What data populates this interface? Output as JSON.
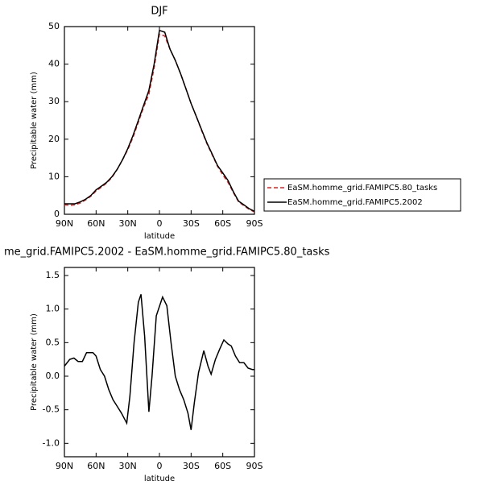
{
  "chart_data": [
    {
      "type": "line",
      "title": "DJF",
      "xlabel": "latitude",
      "ylabel": "Precipitable water (mm)",
      "x": [
        90,
        85,
        80,
        75,
        70,
        65,
        60,
        55,
        50,
        45,
        40,
        35,
        30,
        25,
        20,
        15,
        10,
        5,
        0,
        -5,
        -10,
        -15,
        -20,
        -25,
        -30,
        -35,
        -40,
        -45,
        -50,
        -55,
        -60,
        -65,
        -70,
        -75,
        -80,
        -85,
        -90
      ],
      "series": [
        {
          "name": "EaSM.homme_grid.FAMIPC5.80_tasks",
          "color": "#e02020",
          "dash": true,
          "values": [
            2.5,
            2.4,
            2.5,
            3.0,
            3.8,
            4.8,
            6.2,
            7.2,
            8.3,
            9.8,
            12,
            14.5,
            17.2,
            20.5,
            24.5,
            28.5,
            32,
            39,
            48,
            47.5,
            44,
            41,
            37.5,
            33.5,
            29.5,
            26,
            22.3,
            18.8,
            15.8,
            12.8,
            10.5,
            8.5,
            5.8,
            3.3,
            2.3,
            1.3,
            0.6
          ]
        },
        {
          "name": "EaSM.homme_grid.FAMIPC5.2002",
          "color": "#000000",
          "dash": false,
          "values": [
            2.8,
            2.8,
            2.8,
            3.3,
            4.0,
            5.0,
            6.5,
            7.5,
            8.5,
            10,
            12,
            14.5,
            17.5,
            21,
            25,
            29,
            33,
            40,
            49,
            48.5,
            44,
            41,
            37.5,
            33.5,
            29.5,
            26,
            22.5,
            19,
            16,
            13,
            11,
            9,
            6,
            3.5,
            2.5,
            1.5,
            0.8
          ]
        }
      ],
      "xlim": [
        90,
        -90
      ],
      "xticks": [
        {
          "value": 90,
          "label": "90N"
        },
        {
          "value": 60,
          "label": "60N"
        },
        {
          "value": 30,
          "label": "30N"
        },
        0,
        {
          "value": -30,
          "label": "30S"
        },
        {
          "value": -60,
          "label": "60S"
        },
        {
          "value": -90,
          "label": "90S"
        }
      ],
      "ylim": [
        0,
        50
      ],
      "yticks": [
        0,
        10,
        20,
        30,
        40,
        50
      ]
    },
    {
      "type": "line",
      "title": "me_grid.FAMIPC5.2002 - EaSM.homme_grid.FAMIPC5.80_tasks",
      "xlabel": "latitude",
      "ylabel": "Precipitable water (mm)",
      "x": [
        90,
        85,
        81,
        77,
        73,
        69,
        63,
        60,
        56,
        52,
        48,
        44,
        40,
        36,
        31,
        28,
        24,
        20,
        17.5,
        14,
        10,
        7,
        3,
        -3,
        -7,
        -11,
        -15,
        -19,
        -23,
        -27,
        -30,
        -33,
        -37,
        -42,
        -46,
        -49,
        -53,
        -57,
        -61,
        -65,
        -68,
        -72,
        -76,
        -80,
        -84,
        -88,
        -90
      ],
      "series": [
        {
          "color": "#000000",
          "dash": false,
          "values": [
            0.15,
            0.25,
            0.27,
            0.22,
            0.22,
            0.35,
            0.35,
            0.3,
            0.1,
            0.0,
            -0.2,
            -0.35,
            -0.45,
            -0.55,
            -0.7,
            -0.3,
            0.5,
            1.1,
            1.22,
            0.6,
            -0.53,
            0.0,
            0.9,
            1.18,
            1.05,
            0.5,
            0.0,
            -0.2,
            -0.35,
            -0.55,
            -0.8,
            -0.4,
            0.05,
            0.38,
            0.15,
            0.03,
            0.25,
            0.4,
            0.54,
            0.48,
            0.45,
            0.3,
            0.2,
            0.2,
            0.12,
            0.1,
            0.1
          ]
        }
      ],
      "xlim": [
        90,
        -90
      ],
      "xticks": [
        {
          "value": 90,
          "label": "90N"
        },
        {
          "value": 60,
          "label": "60N"
        },
        {
          "value": 30,
          "label": "30N"
        },
        0,
        {
          "value": -30,
          "label": "30S"
        },
        {
          "value": -60,
          "label": "60S"
        },
        {
          "value": -90,
          "label": "90S"
        }
      ],
      "ylim": [
        -1.2,
        1.62
      ],
      "yticks": [
        {
          "value": -1,
          "label": "-1.0"
        },
        {
          "value": -0.5,
          "label": "-0.5"
        },
        {
          "value": 0,
          "label": "0.0"
        },
        {
          "value": 0.5,
          "label": "0.5"
        },
        {
          "value": 1,
          "label": "1.0"
        },
        {
          "value": 1.5,
          "label": "1.5"
        }
      ]
    }
  ]
}
